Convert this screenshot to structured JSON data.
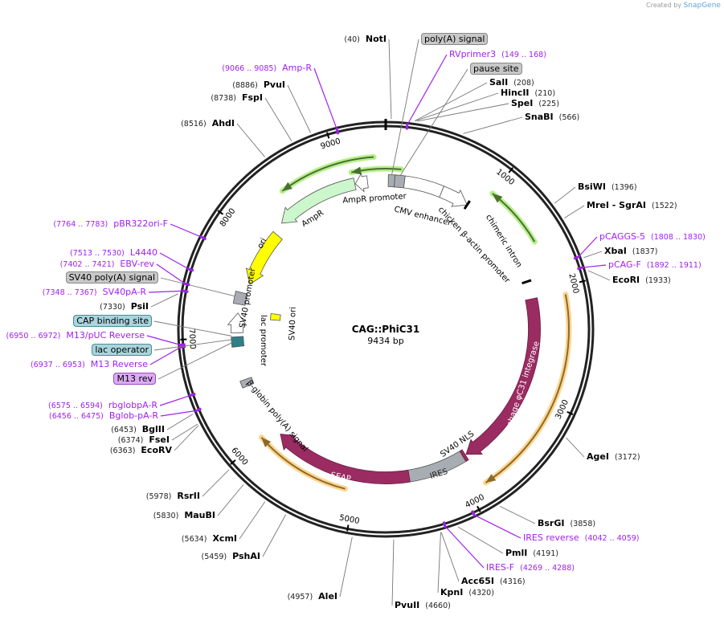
{
  "credit": {
    "prefix": "Created by",
    "brand": "SnapGene"
  },
  "plasmid": {
    "name": "CAG::PhiC31",
    "length_label": "9434 bp",
    "length": 9434
  },
  "ticks": [
    "1000",
    "2000",
    "3000",
    "4000",
    "5000",
    "6000",
    "7000",
    "8000",
    "9000"
  ],
  "sites": [
    {
      "name": "NotI",
      "pos": "(40)",
      "bp": 40,
      "kind": "enzyme"
    },
    {
      "name": "poly(A) signal",
      "bp": 58,
      "kind": "gray"
    },
    {
      "name": "RVprimer3",
      "pos": "(149 .. 168)",
      "bp": 158,
      "kind": "primer"
    },
    {
      "name": "pause site",
      "bp": 140,
      "kind": "gray"
    },
    {
      "name": "SalI",
      "pos": "(208)",
      "bp": 208,
      "kind": "enzyme"
    },
    {
      "name": "HincII",
      "pos": "(210)",
      "bp": 210,
      "kind": "enzyme"
    },
    {
      "name": "SpeI",
      "pos": "(225)",
      "bp": 225,
      "kind": "enzyme"
    },
    {
      "name": "SnaBI",
      "pos": "(566)",
      "bp": 566,
      "kind": "enzyme"
    },
    {
      "name": "BsiWI",
      "pos": "(1396)",
      "bp": 1396,
      "kind": "enzyme"
    },
    {
      "name": "MreI  - SgrAI",
      "pos": "(1522)",
      "bp": 1522,
      "kind": "enzyme"
    },
    {
      "name": "pCAGGS-5",
      "pos": "(1808 .. 1830)",
      "bp": 1819,
      "kind": "primer"
    },
    {
      "name": "XbaI",
      "pos": "(1837)",
      "bp": 1837,
      "kind": "enzyme"
    },
    {
      "name": "pCAG-F",
      "pos": "(1892 .. 1911)",
      "bp": 1901,
      "kind": "primer"
    },
    {
      "name": "EcoRI",
      "pos": "(1933)",
      "bp": 1933,
      "kind": "enzyme"
    },
    {
      "name": "AgeI",
      "pos": "(3172)",
      "bp": 3172,
      "kind": "enzyme"
    },
    {
      "name": "BsrGI",
      "pos": "(3858)",
      "bp": 3858,
      "kind": "enzyme"
    },
    {
      "name": "IRES reverse",
      "pos": "(4042 .. 4059)",
      "bp": 4050,
      "kind": "primer"
    },
    {
      "name": "PmlI",
      "pos": "(4191)",
      "bp": 4191,
      "kind": "enzyme"
    },
    {
      "name": "IRES-F",
      "pos": "(4269 .. 4288)",
      "bp": 4278,
      "kind": "primer"
    },
    {
      "name": "Acc65I",
      "pos": "(4316)",
      "bp": 4316,
      "kind": "enzyme"
    },
    {
      "name": "KpnI",
      "pos": "(4320)",
      "bp": 4320,
      "kind": "enzyme"
    },
    {
      "name": "PvuII",
      "pos": "(4660)",
      "bp": 4660,
      "kind": "enzyme"
    },
    {
      "name": "AleI",
      "pos": "(4957)",
      "bp": 4957,
      "kind": "enzyme"
    },
    {
      "name": "PshAI",
      "pos": "(5459)",
      "bp": 5459,
      "kind": "enzyme"
    },
    {
      "name": "XcmI",
      "pos": "(5634)",
      "bp": 5634,
      "kind": "enzyme"
    },
    {
      "name": "MauBI",
      "pos": "(5830)",
      "bp": 5830,
      "kind": "enzyme"
    },
    {
      "name": "RsrII",
      "pos": "(5978)",
      "bp": 5978,
      "kind": "enzyme"
    },
    {
      "name": "EcoRV",
      "pos": "(6363)",
      "bp": 6363,
      "kind": "enzyme"
    },
    {
      "name": "FseI",
      "pos": "(6374)",
      "bp": 6374,
      "kind": "enzyme"
    },
    {
      "name": "BglII",
      "pos": "(6453)",
      "bp": 6453,
      "kind": "enzyme"
    },
    {
      "name": "Bglob-pA-R",
      "pos": "(6456 .. 6475)",
      "bp": 6465,
      "kind": "primer"
    },
    {
      "name": "rbglobpA-R",
      "pos": "(6575 .. 6594)",
      "bp": 6585,
      "kind": "primer"
    },
    {
      "name": "M13 rev",
      "bp": 6945,
      "kind": "violet"
    },
    {
      "name": "M13 Reverse",
      "pos": "(6937 .. 6953)",
      "bp": 6945,
      "kind": "primer"
    },
    {
      "name": "lac operator",
      "bp": 6975,
      "kind": "teal"
    },
    {
      "name": "M13/pUC Reverse",
      "pos": "(6950 .. 6972)",
      "bp": 6961,
      "kind": "primer"
    },
    {
      "name": "CAP binding site",
      "bp": 7010,
      "kind": "teal"
    },
    {
      "name": "PsiI",
      "pos": "(7330)",
      "bp": 7330,
      "kind": "enzyme"
    },
    {
      "name": "SV40pA-R",
      "pos": "(7348 .. 7367)",
      "bp": 7357,
      "kind": "primer"
    },
    {
      "name": "SV40 poly(A) signal",
      "bp": 7400,
      "kind": "gray"
    },
    {
      "name": "EBV-rev",
      "pos": "(7402 .. 7421)",
      "bp": 7411,
      "kind": "primer"
    },
    {
      "name": "L4440",
      "pos": "(7513 .. 7530)",
      "bp": 7521,
      "kind": "primer"
    },
    {
      "name": "pBR322ori-F",
      "pos": "(7764 .. 7783)",
      "bp": 7773,
      "kind": "primer"
    },
    {
      "name": "AhdI",
      "pos": "(8516)",
      "bp": 8516,
      "kind": "enzyme"
    },
    {
      "name": "FspI",
      "pos": "(8738)",
      "bp": 8738,
      "kind": "enzyme"
    },
    {
      "name": "PvuI",
      "pos": "(8886)",
      "bp": 8886,
      "kind": "enzyme"
    },
    {
      "name": "Amp-R",
      "pos": "(9066 .. 9085)",
      "bp": 9075,
      "kind": "primer"
    }
  ],
  "features": [
    {
      "name": "poly(A) signal",
      "start": 26,
      "end": 90,
      "dir": 0,
      "color": "#a8adb3"
    },
    {
      "name": "pause site",
      "start": 90,
      "end": 190,
      "dir": 0,
      "color": "#a8adb3"
    },
    {
      "name": "CMV enhancer",
      "start": 190,
      "end": 580,
      "dir": 0,
      "color": "#ffffff"
    },
    {
      "name": "chicken β-actin promoter",
      "start": 580,
      "end": 870,
      "dir": 1,
      "color": "#ffffff"
    },
    {
      "name": "chimeric intron",
      "start": 870,
      "end": 1870,
      "dir": 0,
      "color": "#000000"
    },
    {
      "name": "phage φC31 integrase",
      "start": 2050,
      "end": 3860,
      "dir": 1,
      "color": "#9a2c62"
    },
    {
      "name": "SV40 NLS",
      "start": 3868,
      "end": 3895,
      "dir": 0,
      "color": "#9a2c62"
    },
    {
      "name": "IRES",
      "start": 3900,
      "end": 4480,
      "dir": 0,
      "color": "#a8adb3"
    },
    {
      "name": "SEAP",
      "start": 4480,
      "end": 5900,
      "dir": 1,
      "color": "#9a2c62"
    },
    {
      "name": "β-globin poly(A) signal",
      "start": 6490,
      "end": 6560,
      "dir": 0,
      "color": "#a8adb3"
    },
    {
      "name": "lac promoter",
      "start": 6900,
      "end": 7000,
      "dir": 0,
      "color": "#2f7f89"
    },
    {
      "name": "SV40 promoter",
      "start": 7040,
      "end": 7240,
      "dir": 1,
      "color": "#ffffff"
    },
    {
      "name": "SV40 ori",
      "start": 7200,
      "end": 7280,
      "dir": 0,
      "color": "#ffff00"
    },
    {
      "name": "SV40 poly(A) signal",
      "start": 7330,
      "end": 7450,
      "dir": 0,
      "color": "#a8adb3"
    },
    {
      "name": "ori",
      "start": 7560,
      "end": 8150,
      "dir": -1,
      "color": "#ffff00"
    },
    {
      "name": "AmpR",
      "start": 8270,
      "end": 9120,
      "dir": -1,
      "color": "#ccf7cc"
    },
    {
      "name": "AmpR promoter",
      "start": 9125,
      "end": 9250,
      "dir": -1,
      "color": "#ffffff"
    }
  ],
  "primer_arcs": [
    {
      "start": 8470,
      "end": 9330,
      "dir": -1,
      "color": "#b6f08a"
    },
    {
      "start": 9110,
      "end": 9580,
      "dir": -1,
      "color": "#b6f08a"
    },
    {
      "start": 1000,
      "end": 1560,
      "dir": -1,
      "color": "#b6f08a"
    },
    {
      "start": 2070,
      "end": 3850,
      "dir": 1,
      "color": "#ffd590"
    },
    {
      "start": 5090,
      "end": 6000,
      "dir": 1,
      "color": "#ffd590"
    }
  ]
}
